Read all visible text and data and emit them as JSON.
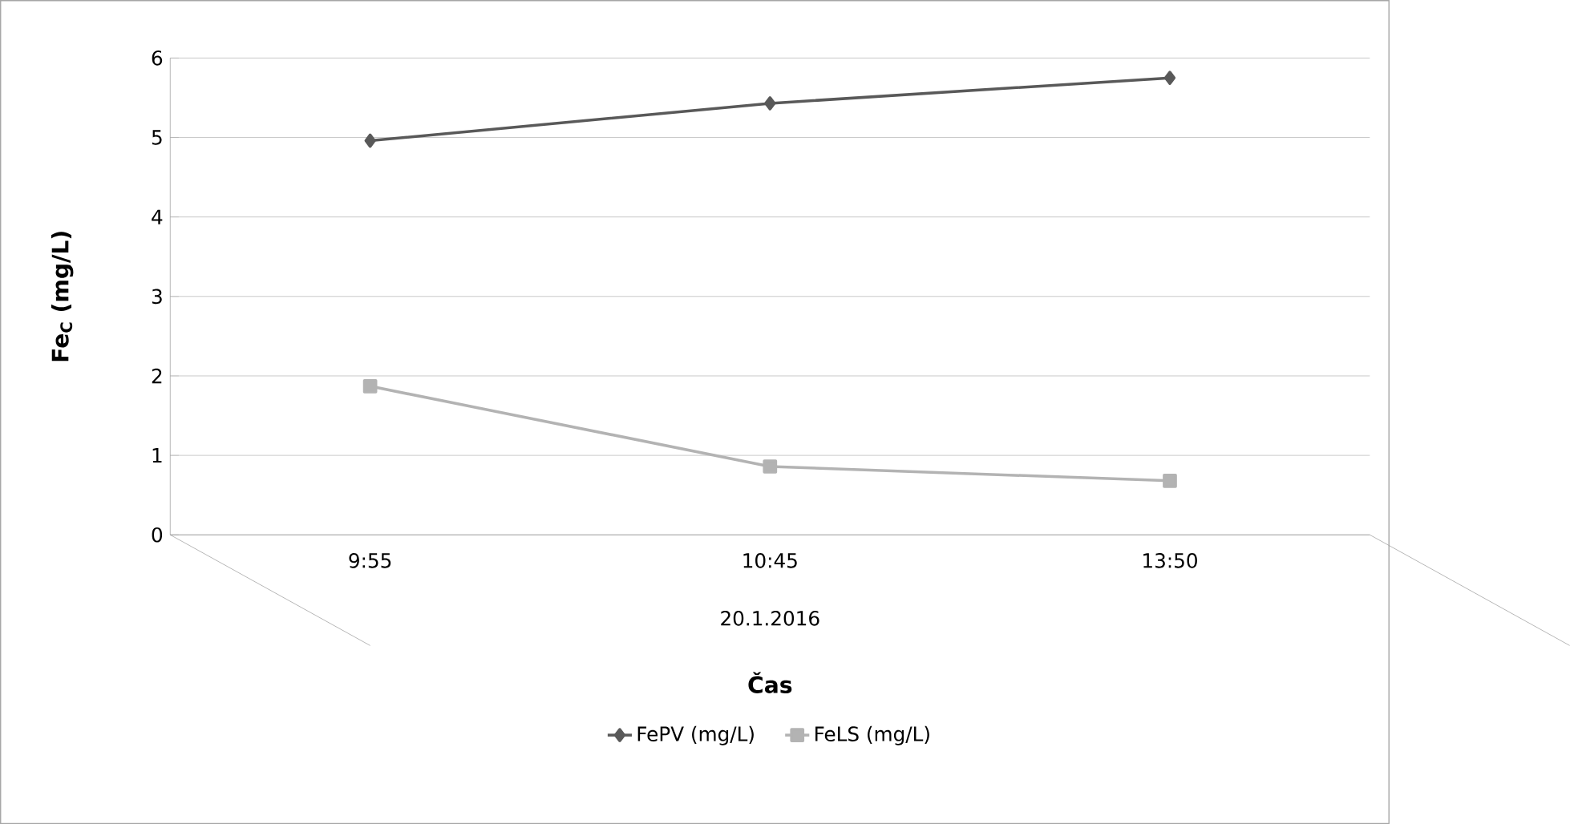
{
  "chart_data": {
    "type": "line",
    "xlabel": "**Čas**",
    "ylabel": "**Fe$_{C}$ (mg/L)**",
    "categories": [
      "9:55",
      "10:45",
      "13:50"
    ],
    "series": [
      {
        "name": "FePV (mg/L)",
        "color": "#595959",
        "marker": "diamond",
        "values": [
          4.96,
          5.43,
          5.75
        ]
      },
      {
        "name": "FeLS (mg/L)",
        "color": "#b3b3b3",
        "marker": "square",
        "values": [
          1.87,
          0.86,
          0.68
        ]
      }
    ],
    "annotations": [
      "20.1.2016"
    ],
    "ylim": [
      0,
      6
    ],
    "yticks": [
      0,
      1,
      2,
      3,
      4,
      5,
      6
    ],
    "grid": "y",
    "legend": "bottom"
  }
}
